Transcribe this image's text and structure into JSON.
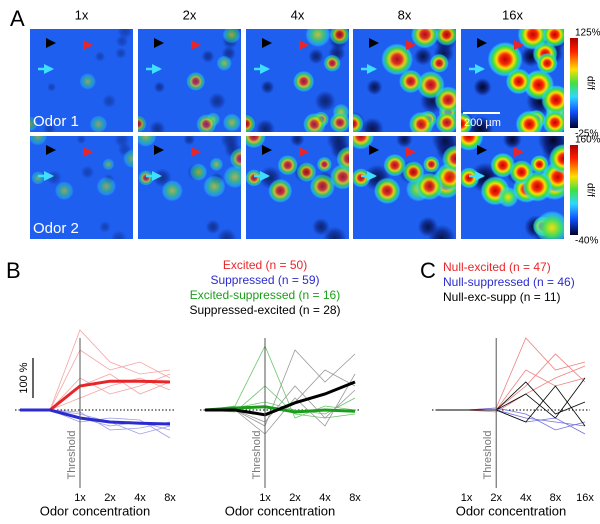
{
  "panel_labels": [
    "A",
    "B",
    "C"
  ],
  "panel_a": {
    "columns": [
      "1x",
      "2x",
      "4x",
      "8x",
      "16x"
    ],
    "rows": [
      "Odor 1",
      "Odor 2"
    ],
    "colorbars": [
      {
        "max": "125%",
        "min": "-25%",
        "label": "df/f"
      },
      {
        "max": "160%",
        "min": "-40%",
        "label": "df/f"
      }
    ],
    "scale_bar": "200 µm"
  },
  "chart_data": [
    {
      "type": "line",
      "categories": [
        null,
        null,
        "1x",
        "2x",
        "4x",
        "8x"
      ],
      "xlabel": "Odor concentration",
      "ylim": [
        -150,
        400
      ],
      "scale_bar": {
        "value": 100,
        "label": "100 %"
      },
      "threshold": {
        "label": "Threshold",
        "at": "1x"
      },
      "series": [
        {
          "name": "Excited (n = 50)",
          "color": "#e8262a",
          "trace_color": "#f5a5a5",
          "values": [
            0,
            0,
            60,
            72,
            72,
            70
          ],
          "traces": [
            [
              0,
              0,
              150,
              100,
              120,
              80
            ],
            [
              0,
              0,
              60,
              90,
              40,
              70
            ],
            [
              0,
              0,
              30,
              60,
              80,
              50
            ],
            [
              0,
              0,
              200,
              120,
              90,
              100
            ],
            [
              0,
              0,
              80,
              40,
              60,
              90
            ]
          ]
        },
        {
          "name": "Suppressed (n = 59)",
          "color": "#2b2bcf",
          "trace_color": "#9d9de8",
          "values": [
            0,
            0,
            -20,
            -30,
            -33,
            -35
          ],
          "traces": [
            [
              0,
              0,
              -20,
              -40,
              -30,
              -50
            ],
            [
              0,
              0,
              -10,
              -30,
              -60,
              -40
            ],
            [
              0,
              0,
              -30,
              -20,
              -25,
              -70
            ],
            [
              0,
              0,
              -5,
              -50,
              -45,
              -30
            ]
          ]
        }
      ]
    },
    {
      "type": "line",
      "categories": [
        null,
        null,
        "1x",
        "2x",
        "4x",
        "8x"
      ],
      "xlabel": "Odor concentration",
      "ylim": [
        -150,
        400
      ],
      "threshold": {
        "label": "Threshold",
        "at": "1x"
      },
      "series": [
        {
          "name": "Excited-suppressed (n = 16)",
          "color": "#1a9e1a",
          "trace_color": "#6cc46c",
          "values": [
            0,
            5,
            8,
            -5,
            0,
            -3
          ],
          "traces": [
            [
              0,
              10,
              160,
              -20,
              10,
              0
            ],
            [
              0,
              -5,
              60,
              -10,
              -20,
              -10
            ],
            [
              0,
              5,
              20,
              0,
              -10,
              30
            ]
          ]
        },
        {
          "name": "Suppressed-excited (n = 28)",
          "color": "#000000",
          "trace_color": "#999999",
          "values": [
            0,
            0,
            -12,
            18,
            40,
            70
          ],
          "traces": [
            [
              0,
              0,
              -30,
              60,
              -20,
              50
            ],
            [
              0,
              0,
              -40,
              150,
              70,
              140
            ],
            [
              0,
              0,
              -10,
              20,
              100,
              60
            ],
            [
              0,
              0,
              -60,
              30,
              -40,
              90
            ]
          ]
        }
      ]
    },
    {
      "type": "line",
      "categories": [
        null,
        "1x",
        "2x",
        "4x",
        "8x",
        "16x"
      ],
      "xlabel": "Odor concentration",
      "ylim": [
        -150,
        400
      ],
      "threshold": {
        "label": "Threshold",
        "at": "2x"
      },
      "series": [
        {
          "name": "Null-excited (n = 47)",
          "color": "#e8262a",
          "trace_color": "#f08080",
          "traces": [
            [
              0,
              0,
              0,
              100,
              60,
              80
            ],
            [
              0,
              0,
              5,
              180,
              100,
              120
            ],
            [
              0,
              0,
              0,
              60,
              140,
              70
            ],
            [
              0,
              0,
              -5,
              40,
              80,
              110
            ]
          ]
        },
        {
          "name": "Null-suppressed (n = 46)",
          "color": "#2b2bcf",
          "trace_color": "#7070e0",
          "traces": [
            [
              0,
              0,
              0,
              -20,
              -30,
              -40
            ],
            [
              0,
              0,
              5,
              -10,
              -50,
              -30
            ],
            [
              0,
              0,
              0,
              -30,
              -20,
              -60
            ]
          ]
        },
        {
          "name": "Null-exc-supp (n = 11)",
          "color": "#000000",
          "trace_color": "#000000",
          "traces": [
            [
              0,
              0,
              0,
              40,
              -20,
              80
            ],
            [
              0,
              0,
              0,
              -30,
              60,
              -40
            ],
            [
              0,
              0,
              0,
              70,
              -10,
              20
            ]
          ]
        }
      ]
    }
  ]
}
